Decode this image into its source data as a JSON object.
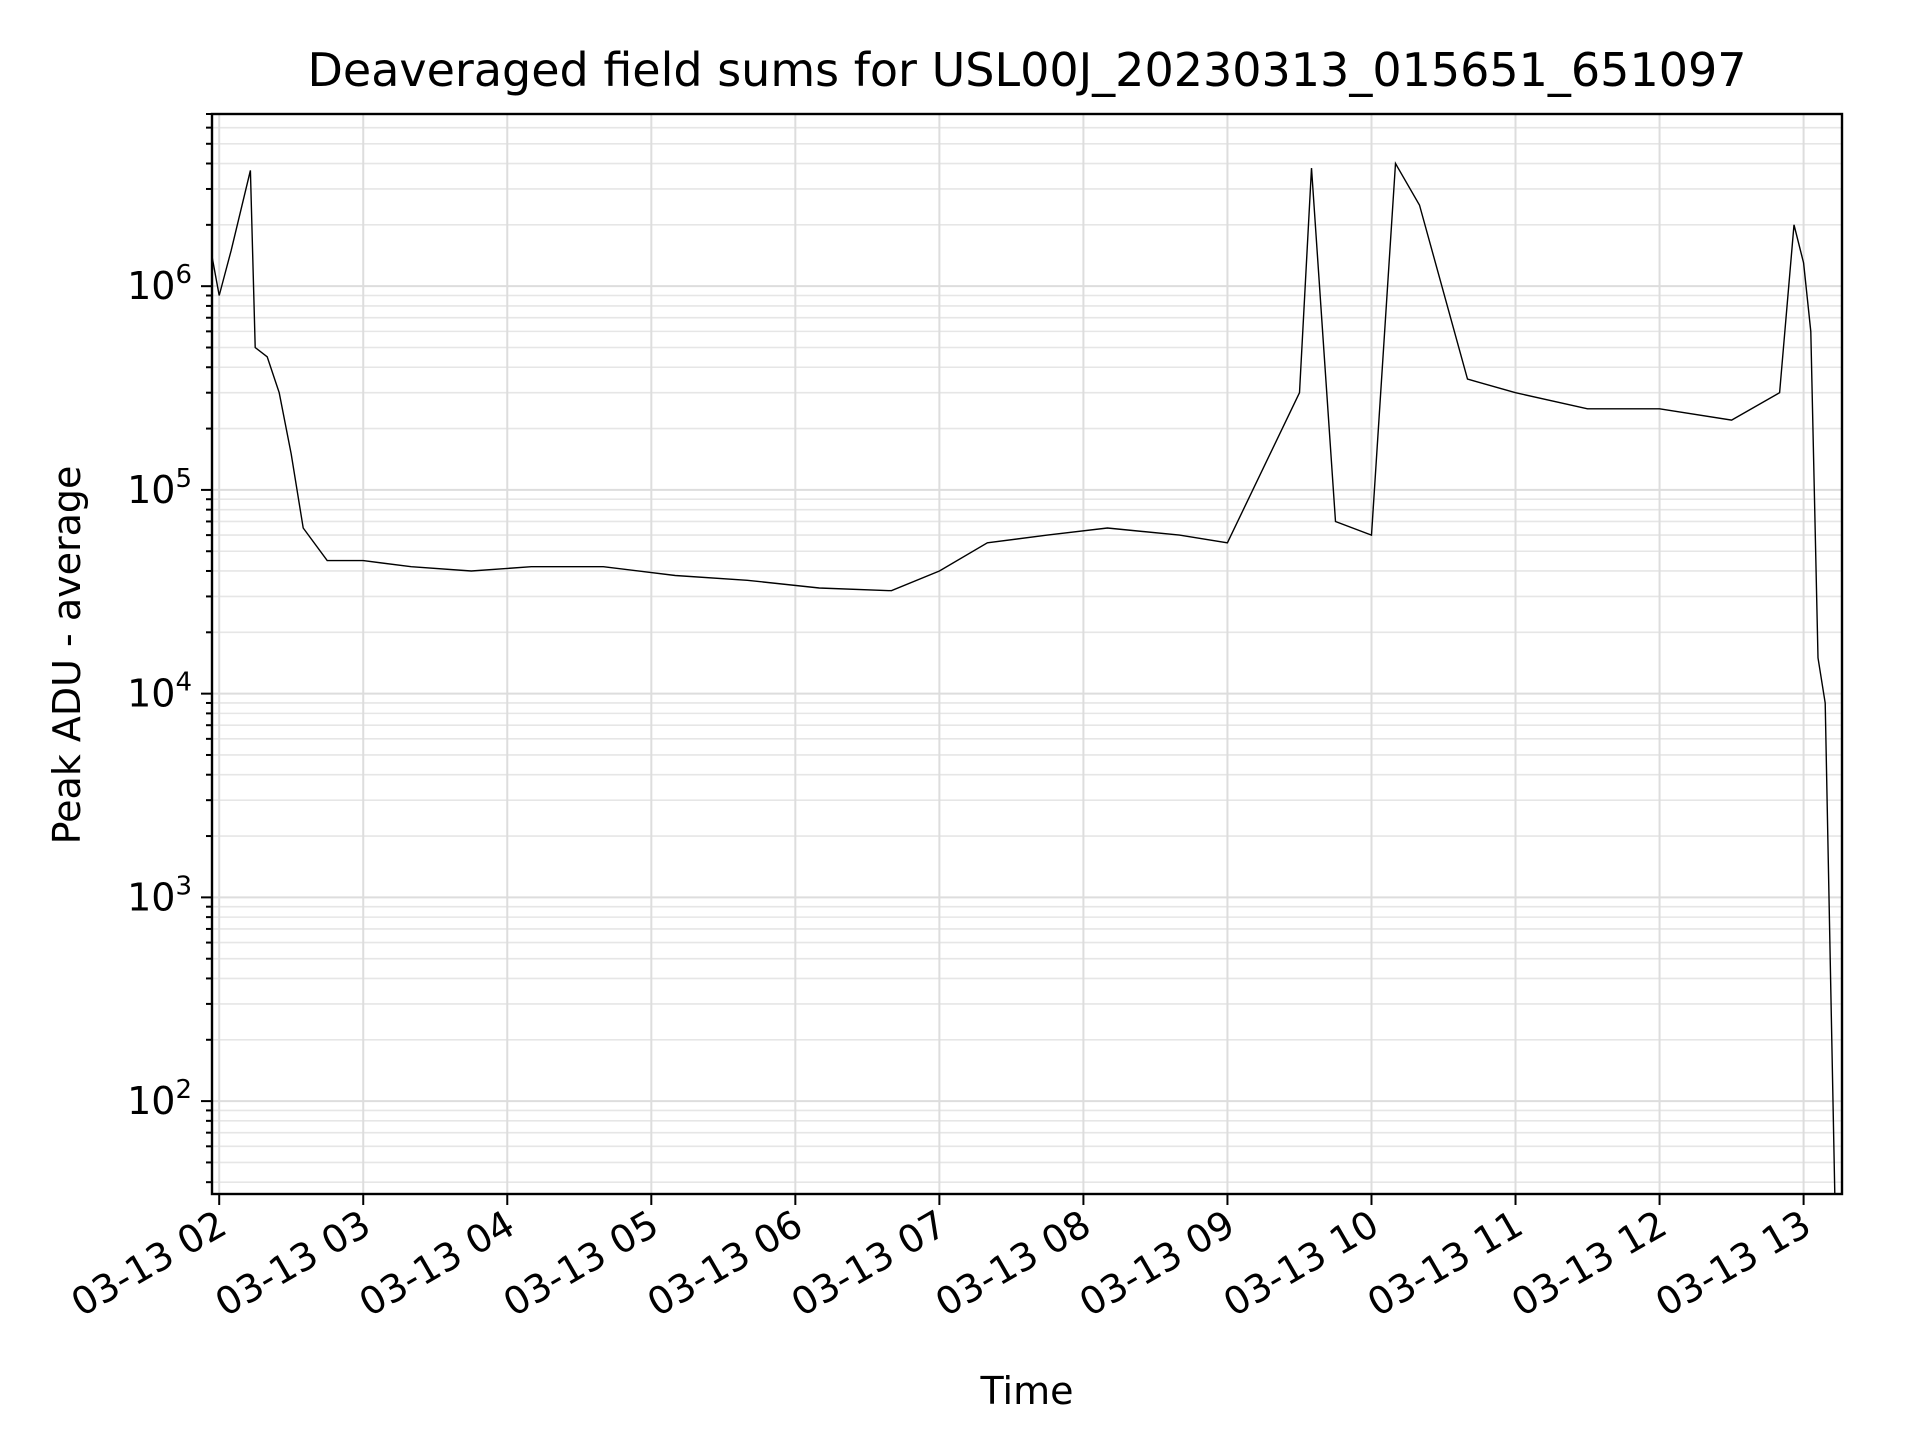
{
  "chart_data": {
    "type": "line",
    "title": "Deaveraged field sums for USL00J_20230313_015651_651097",
    "xlabel": "Time",
    "ylabel": "Peak ADU - average",
    "yscale": "log",
    "grid": true,
    "x_ticks": [
      "03-13 02",
      "03-13 03",
      "03-13 04",
      "03-13 05",
      "03-13 06",
      "03-13 07",
      "03-13 08",
      "03-13 09",
      "03-13 10",
      "03-13 11",
      "03-13 12",
      "03-13 13"
    ],
    "y_ticks": [
      {
        "base": "10",
        "exp": "2",
        "value": 100
      },
      {
        "base": "10",
        "exp": "3",
        "value": 1000
      },
      {
        "base": "10",
        "exp": "4",
        "value": 10000
      },
      {
        "base": "10",
        "exp": "5",
        "value": 100000
      },
      {
        "base": "10",
        "exp": "6",
        "value": 1000000
      }
    ],
    "xlim": [
      "2023-03-13 01:57",
      "2023-03-13 13:16"
    ],
    "ylim": [
      35,
      7000000
    ],
    "series": [
      {
        "color": "#000000",
        "points": [
          [
            "2023-03-13 01:57",
            1400000
          ],
          [
            "2023-03-13 02:00",
            900000
          ],
          [
            "2023-03-13 02:05",
            1500000
          ],
          [
            "2023-03-13 02:13",
            3700000
          ],
          [
            "2023-03-13 02:15",
            500000
          ],
          [
            "2023-03-13 02:20",
            450000
          ],
          [
            "2023-03-13 02:25",
            300000
          ],
          [
            "2023-03-13 02:30",
            150000
          ],
          [
            "2023-03-13 02:35",
            65000
          ],
          [
            "2023-03-13 02:45",
            45000
          ],
          [
            "2023-03-13 03:00",
            45000
          ],
          [
            "2023-03-13 03:20",
            42000
          ],
          [
            "2023-03-13 03:45",
            40000
          ],
          [
            "2023-03-13 04:10",
            42000
          ],
          [
            "2023-03-13 04:40",
            42000
          ],
          [
            "2023-03-13 05:10",
            38000
          ],
          [
            "2023-03-13 05:40",
            36000
          ],
          [
            "2023-03-13 06:10",
            33000
          ],
          [
            "2023-03-13 06:40",
            32000
          ],
          [
            "2023-03-13 07:00",
            40000
          ],
          [
            "2023-03-13 07:20",
            55000
          ],
          [
            "2023-03-13 07:45",
            60000
          ],
          [
            "2023-03-13 08:10",
            65000
          ],
          [
            "2023-03-13 08:40",
            60000
          ],
          [
            "2023-03-13 09:00",
            55000
          ],
          [
            "2023-03-13 09:30",
            300000
          ],
          [
            "2023-03-13 09:35",
            3800000
          ],
          [
            "2023-03-13 09:45",
            70000
          ],
          [
            "2023-03-13 10:00",
            60000
          ],
          [
            "2023-03-13 10:10",
            4000000
          ],
          [
            "2023-03-13 10:20",
            2500000
          ],
          [
            "2023-03-13 10:40",
            350000
          ],
          [
            "2023-03-13 11:00",
            300000
          ],
          [
            "2023-03-13 11:30",
            250000
          ],
          [
            "2023-03-13 12:00",
            250000
          ],
          [
            "2023-03-13 12:30",
            220000
          ],
          [
            "2023-03-13 12:50",
            300000
          ],
          [
            "2023-03-13 12:56",
            2000000
          ],
          [
            "2023-03-13 13:00",
            1300000
          ],
          [
            "2023-03-13 13:03",
            600000
          ],
          [
            "2023-03-13 13:06",
            15000
          ],
          [
            "2023-03-13 13:09",
            9000
          ],
          [
            "2023-03-13 13:13",
            35
          ]
        ]
      }
    ]
  }
}
